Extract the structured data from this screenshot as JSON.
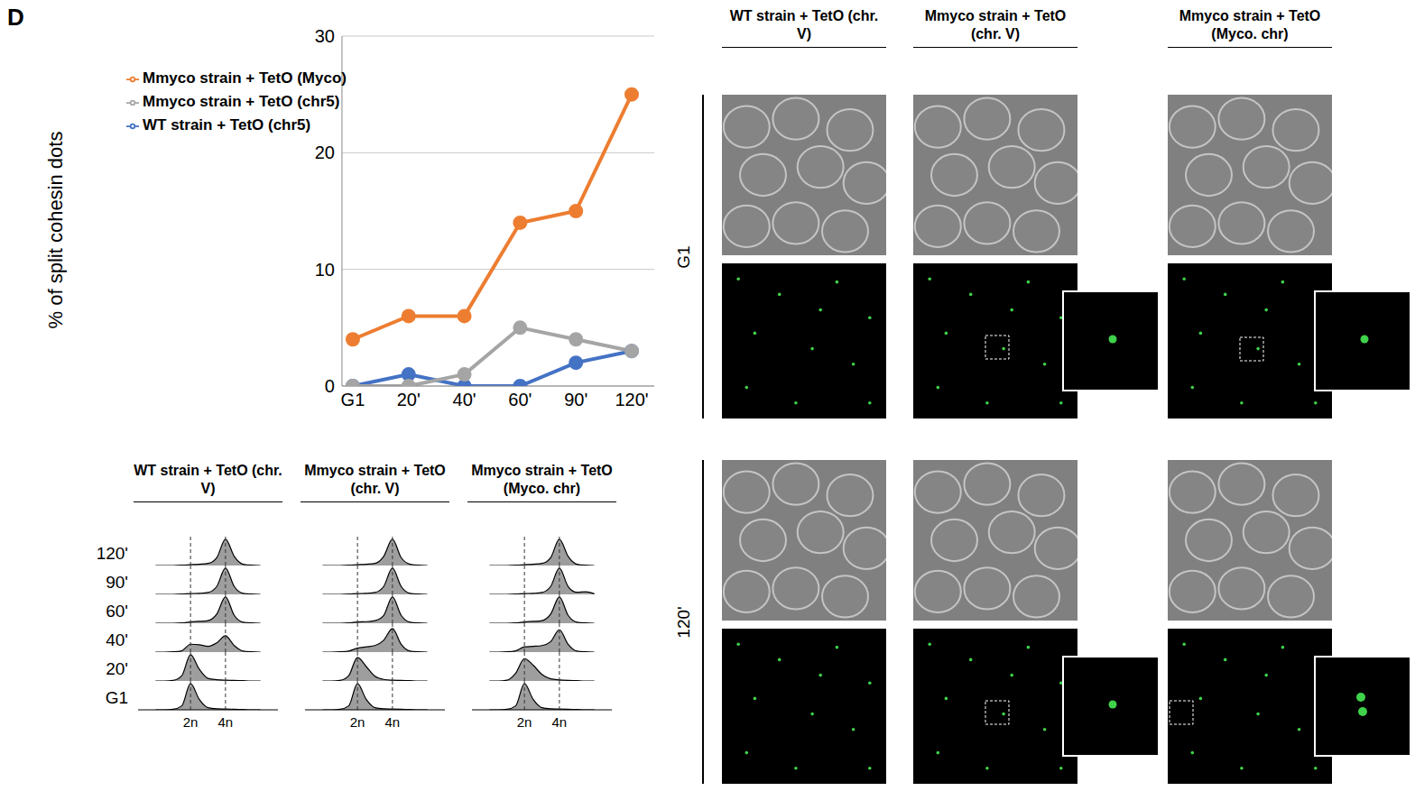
{
  "panel_label": "D",
  "chart_data": [
    {
      "type": "line",
      "categories": [
        "G1",
        "20'",
        "40'",
        "60'",
        "90'",
        "120'"
      ],
      "series": [
        {
          "name": "WT strain + TetO (chr5)",
          "color": "#4472c4",
          "marker": "circle",
          "values": [
            0,
            1,
            0,
            0,
            2,
            3
          ]
        },
        {
          "name": "Mmyco strain + TetO (chr5)",
          "color": "#a5a5a5",
          "marker": "circle",
          "values": [
            0,
            0,
            1,
            5,
            4,
            3
          ]
        },
        {
          "name": "Mmyco strain + TetO (Myco)",
          "color": "#ed7d31",
          "marker": "circle",
          "values": [
            4,
            6,
            6,
            14,
            15,
            25
          ]
        }
      ],
      "ylabel": "% of split cohesin dots",
      "ylim": [
        0,
        30
      ],
      "yticks": [
        0,
        10,
        20,
        30
      ],
      "grid": true,
      "legend": "upper left"
    },
    {
      "type": "area",
      "rows": [
        "120'",
        "90'",
        "60'",
        "40'",
        "20'",
        "G1"
      ],
      "x": [
        0,
        0.5,
        1,
        1.5,
        2,
        2.5,
        3,
        3.5,
        4,
        4.5,
        5,
        5.5,
        6
      ],
      "xlim": [
        -1,
        7
      ],
      "xticks": [
        {
          "value": 2,
          "label": "2n"
        },
        {
          "value": 4,
          "label": "4n"
        }
      ],
      "ylim": [
        0,
        1.1
      ],
      "grid": true,
      "tick_labels": "x",
      "color": "#9e9e9e",
      "panels": [
        {
          "title": "WT strain + TetO (chr. V)",
          "profiles": [
            [
              0,
              0,
              0,
              0.01,
              0.03,
              0.05,
              0.08,
              0.3,
              1,
              0.35,
              0.05,
              0.01,
              0
            ],
            [
              0,
              0,
              0,
              0.01,
              0.03,
              0.04,
              0.07,
              0.3,
              1,
              0.3,
              0.04,
              0.01,
              0
            ],
            [
              0,
              0,
              0,
              0.01,
              0.05,
              0.07,
              0.1,
              0.35,
              1,
              0.3,
              0.04,
              0.01,
              0
            ],
            [
              0,
              0,
              0.01,
              0.05,
              0.3,
              0.28,
              0.22,
              0.35,
              0.62,
              0.25,
              0.04,
              0.01,
              0
            ],
            [
              0,
              0,
              0.02,
              0.2,
              1,
              0.45,
              0.1,
              0.05,
              0.03,
              0.02,
              0.01,
              0,
              0
            ],
            [
              0,
              0,
              0.02,
              0.15,
              1,
              0.4,
              0.08,
              0.04,
              0.03,
              0.02,
              0.01,
              0,
              0
            ]
          ]
        },
        {
          "title": "Mmyco strain + TetO (chr. V)",
          "profiles": [
            [
              0,
              0,
              0,
              0.01,
              0.03,
              0.05,
              0.08,
              0.35,
              1,
              0.3,
              0.05,
              0.01,
              0
            ],
            [
              0,
              0,
              0,
              0.01,
              0.03,
              0.04,
              0.07,
              0.3,
              1,
              0.3,
              0.04,
              0.01,
              0
            ],
            [
              0,
              0,
              0,
              0.01,
              0.05,
              0.06,
              0.1,
              0.3,
              1,
              0.3,
              0.04,
              0.01,
              0
            ],
            [
              0,
              0,
              0.01,
              0.04,
              0.15,
              0.2,
              0.25,
              0.45,
              0.9,
              0.3,
              0.04,
              0.01,
              0
            ],
            [
              0,
              0,
              0.02,
              0.2,
              0.9,
              0.55,
              0.18,
              0.06,
              0.03,
              0.02,
              0.01,
              0,
              0
            ],
            [
              0,
              0,
              0.02,
              0.15,
              1,
              0.4,
              0.08,
              0.04,
              0.03,
              0.02,
              0.01,
              0,
              0
            ]
          ]
        },
        {
          "title": "Mmyco strain + TetO (Myco. chr)",
          "profiles": [
            [
              0,
              0,
              0,
              0.01,
              0.03,
              0.05,
              0.08,
              0.3,
              1,
              0.35,
              0.05,
              0.01,
              0
            ],
            [
              0,
              0,
              0,
              0.01,
              0.03,
              0.04,
              0.07,
              0.3,
              1,
              0.3,
              0.08,
              0.1,
              0.02
            ],
            [
              0,
              0,
              0,
              0.01,
              0.05,
              0.07,
              0.1,
              0.35,
              1,
              0.3,
              0.04,
              0.01,
              0
            ],
            [
              0,
              0,
              0.01,
              0.05,
              0.2,
              0.22,
              0.25,
              0.4,
              0.85,
              0.3,
              0.04,
              0.01,
              0
            ],
            [
              0,
              0,
              0.03,
              0.3,
              0.85,
              0.6,
              0.25,
              0.08,
              0.04,
              0.02,
              0.01,
              0,
              0
            ],
            [
              0,
              0,
              0.02,
              0.15,
              1,
              0.4,
              0.08,
              0.04,
              0.03,
              0.02,
              0.01,
              0,
              0
            ]
          ]
        }
      ]
    }
  ],
  "images": {
    "columns": [
      "WT strain + TetO (chr. V)",
      "Mmyco strain + TetO (chr. V)",
      "Mmyco strain + TetO (Myco. chr)"
    ],
    "rows": [
      "G1",
      "120'"
    ]
  }
}
